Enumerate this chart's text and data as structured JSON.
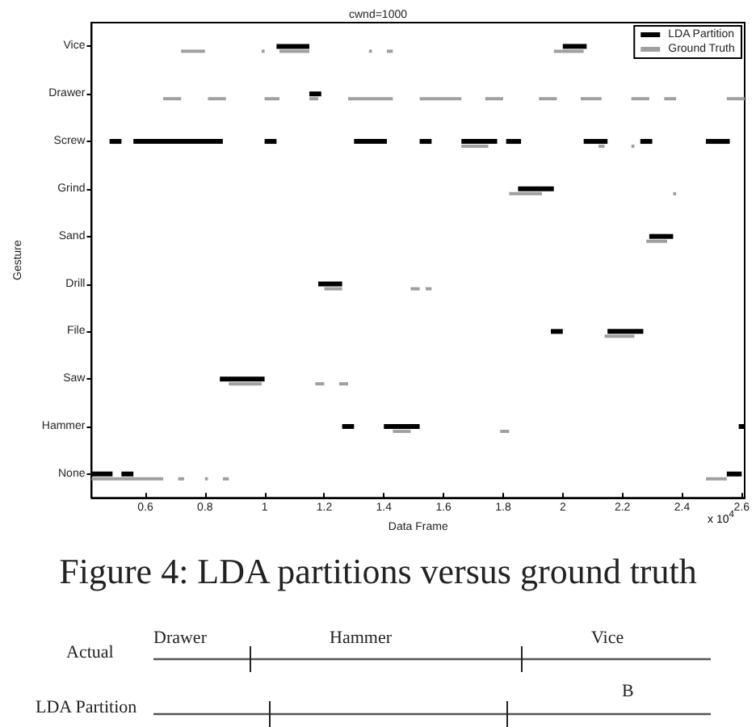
{
  "chart_data": [
    {
      "type": "bar",
      "orientation": "horizontal",
      "title": "cwnd=1000",
      "xlabel": "Data Frame",
      "ylabel": "Gesture",
      "annotations": [
        "x 10$^{4}$",
        "Figure 4: LDA partitions versus ground truth"
      ],
      "categories": [
        "Vice",
        "Drawer",
        "Screw",
        "Grind",
        "Sand",
        "Drill",
        "File",
        "Saw",
        "Hammer",
        "None"
      ],
      "xlim": [
        0.42,
        2.61
      ],
      "xticks": [
        0.6,
        0.8,
        1,
        1.2,
        1.4,
        1.6,
        1.8,
        2,
        2.2,
        2.4,
        2.6
      ],
      "grid": false,
      "legend": "top right",
      "series": [
        {
          "name": "LDA Partition",
          "color": "#000000",
          "base": [
            1.04,
            1.15,
            0.48,
            1.85,
            2.29,
            1.18,
            1.96,
            0.85,
            1.26,
            0.42
          ],
          "values": [
            0.11,
            0.04,
            0.04,
            0.12,
            0.08,
            0.08,
            0.04,
            0.15,
            0.04,
            0.07
          ]
        },
        {
          "color": "#000000",
          "base": [
            2.0,
            null,
            0.56,
            null,
            null,
            null,
            2.15,
            null,
            1.4,
            0.52
          ],
          "values": [
            0.08,
            null,
            0.3,
            null,
            null,
            null,
            0.12,
            null,
            0.12,
            0.04
          ]
        },
        {
          "color": "#000000",
          "base": [
            null,
            null,
            1.0,
            null,
            null,
            null,
            null,
            null,
            2.59,
            2.55
          ],
          "values": [
            null,
            null,
            0.04,
            null,
            null,
            null,
            null,
            null,
            0.02,
            0.05
          ]
        },
        {
          "color": "#000000",
          "base": [
            null,
            null,
            1.3,
            null,
            null,
            null,
            null,
            null,
            null,
            null
          ],
          "values": [
            null,
            null,
            0.11,
            null,
            null,
            null,
            null,
            null,
            null,
            null
          ]
        },
        {
          "color": "#000000",
          "base": [
            null,
            null,
            1.52,
            null,
            null,
            null,
            null,
            null,
            null,
            null
          ],
          "values": [
            null,
            null,
            0.04,
            null,
            null,
            null,
            null,
            null,
            null,
            null
          ]
        },
        {
          "color": "#000000",
          "base": [
            null,
            null,
            1.66,
            null,
            null,
            null,
            null,
            null,
            null,
            null
          ],
          "values": [
            null,
            null,
            0.12,
            null,
            null,
            null,
            null,
            null,
            null,
            null
          ]
        },
        {
          "color": "#000000",
          "base": [
            null,
            null,
            1.81,
            null,
            null,
            null,
            null,
            null,
            null,
            null
          ],
          "values": [
            null,
            null,
            0.05,
            null,
            null,
            null,
            null,
            null,
            null,
            null
          ]
        },
        {
          "color": "#000000",
          "base": [
            null,
            null,
            2.07,
            null,
            null,
            null,
            null,
            null,
            null,
            null
          ],
          "values": [
            null,
            null,
            0.08,
            null,
            null,
            null,
            null,
            null,
            null,
            null
          ]
        },
        {
          "color": "#000000",
          "base": [
            null,
            null,
            2.26,
            null,
            null,
            null,
            null,
            null,
            null,
            null
          ],
          "values": [
            null,
            null,
            0.04,
            null,
            null,
            null,
            null,
            null,
            null,
            null
          ]
        },
        {
          "color": "#000000",
          "base": [
            null,
            null,
            2.48,
            null,
            null,
            null,
            null,
            null,
            null,
            null
          ],
          "values": [
            null,
            null,
            0.08,
            null,
            null,
            null,
            null,
            null,
            null,
            null
          ]
        },
        {
          "name": "Ground Truth",
          "color": "#a0a0a0",
          "base": [
            0.72,
            0.66,
            1.66,
            1.82,
            2.28,
            1.2,
            2.14,
            0.88,
            1.43,
            0.42
          ],
          "values": [
            0.08,
            0.06,
            0.09,
            0.11,
            0.07,
            0.06,
            0.1,
            0.11,
            0.06,
            0.24
          ]
        },
        {
          "color": "#a0a0a0",
          "base": [
            0.99,
            0.81,
            2.12,
            2.37,
            null,
            1.49,
            null,
            1.17,
            1.79,
            0.71
          ],
          "values": [
            0.01,
            0.06,
            0.02,
            0.01,
            null,
            0.03,
            null,
            0.03,
            0.03,
            0.02
          ]
        },
        {
          "color": "#a0a0a0",
          "base": [
            1.05,
            1.0,
            2.23,
            null,
            null,
            1.54,
            null,
            1.25,
            null,
            0.8
          ],
          "values": [
            0.1,
            0.05,
            0.01,
            null,
            null,
            0.02,
            null,
            0.03,
            null,
            0.01
          ]
        },
        {
          "color": "#a0a0a0",
          "base": [
            1.35,
            1.15,
            null,
            null,
            null,
            null,
            null,
            null,
            null,
            0.86
          ],
          "values": [
            0.01,
            0.03,
            null,
            null,
            null,
            null,
            null,
            null,
            null,
            0.02
          ]
        },
        {
          "color": "#a0a0a0",
          "base": [
            1.41,
            1.28,
            null,
            null,
            null,
            null,
            null,
            null,
            null,
            2.48
          ],
          "values": [
            0.02,
            0.15,
            null,
            null,
            null,
            null,
            null,
            null,
            null,
            0.07
          ]
        },
        {
          "color": "#a0a0a0",
          "base": [
            1.97,
            1.52,
            null,
            null,
            null,
            null,
            null,
            null,
            null,
            null
          ],
          "values": [
            0.1,
            0.14,
            null,
            null,
            null,
            null,
            null,
            null,
            null,
            null
          ]
        },
        {
          "color": "#a0a0a0",
          "base": [
            null,
            1.74,
            null,
            null,
            null,
            null,
            null,
            null,
            null,
            null
          ],
          "values": [
            null,
            0.06,
            null,
            null,
            null,
            null,
            null,
            null,
            null,
            null
          ]
        },
        {
          "color": "#a0a0a0",
          "base": [
            null,
            1.92,
            null,
            null,
            null,
            null,
            null,
            null,
            null,
            null
          ],
          "values": [
            null,
            0.06,
            null,
            null,
            null,
            null,
            null,
            null,
            null,
            null
          ]
        },
        {
          "color": "#a0a0a0",
          "base": [
            null,
            2.06,
            null,
            null,
            null,
            null,
            null,
            null,
            null,
            null
          ],
          "values": [
            null,
            0.07,
            null,
            null,
            null,
            null,
            null,
            null,
            null,
            null
          ]
        },
        {
          "color": "#a0a0a0",
          "base": [
            null,
            2.23,
            null,
            null,
            null,
            null,
            null,
            null,
            null,
            null
          ],
          "values": [
            null,
            0.06,
            null,
            null,
            null,
            null,
            null,
            null,
            null,
            null
          ]
        },
        {
          "color": "#a0a0a0",
          "base": [
            null,
            2.34,
            null,
            null,
            null,
            null,
            null,
            null,
            null,
            null
          ],
          "values": [
            null,
            0.04,
            null,
            null,
            null,
            null,
            null,
            null,
            null,
            null
          ]
        },
        {
          "color": "#a0a0a0",
          "base": [
            null,
            2.55,
            null,
            null,
            null,
            null,
            null,
            null,
            null,
            null
          ],
          "values": [
            null,
            0.06,
            null,
            null,
            null,
            null,
            null,
            null,
            null,
            null
          ]
        }
      ]
    },
    {
      "type": "other",
      "annotations": [
        "Drawer",
        "Hammer",
        "Vice",
        "Actual",
        "LDA Partition",
        "B"
      ]
    }
  ]
}
